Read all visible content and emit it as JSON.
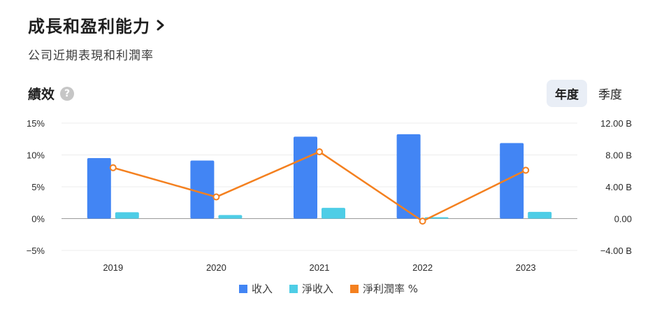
{
  "header": {
    "title": "成長和盈利能力",
    "subtitle": "公司近期表現和利潤率"
  },
  "performance": {
    "label": "績效",
    "help_icon": "question-circle-icon"
  },
  "period_toggle": {
    "annual_label": "年度",
    "quarterly_label": "季度",
    "selected": "年度"
  },
  "chart_data": {
    "type": "bar",
    "categories": [
      "2019",
      "2020",
      "2021",
      "2022",
      "2023"
    ],
    "series": [
      {
        "name": "收入",
        "kind": "bar",
        "axis": "right",
        "color": "#4285f4",
        "values": [
          7.6,
          7.3,
          10.3,
          10.6,
          9.5
        ]
      },
      {
        "name": "淨收入",
        "kind": "bar",
        "axis": "right",
        "color": "#4ecde6",
        "values": [
          0.8,
          0.45,
          1.35,
          0.05,
          0.85
        ]
      },
      {
        "name": "淨利潤率 %",
        "kind": "line",
        "axis": "left",
        "color": "#f4801f",
        "values": [
          8.0,
          3.4,
          10.5,
          -0.4,
          7.6
        ]
      }
    ],
    "left_axis": {
      "ticks": [
        "15%",
        "10%",
        "5%",
        "0%",
        "−5%"
      ],
      "range": [
        -5,
        15
      ]
    },
    "right_axis": {
      "ticks": [
        "12.00 B",
        "8.00 B",
        "4.00 B",
        "0.00",
        "−4.00 B"
      ],
      "range": [
        -4,
        12
      ]
    },
    "legend_position": "bottom",
    "grid": true
  }
}
